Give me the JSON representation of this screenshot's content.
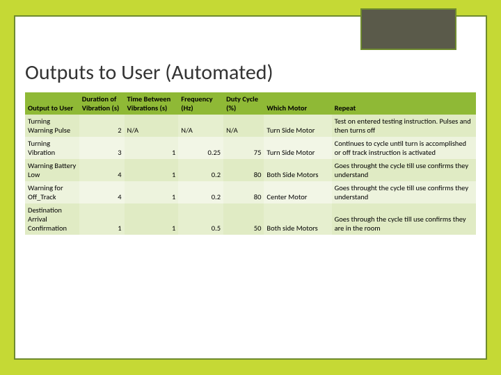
{
  "title": "Outputs to User (Automated)",
  "columns": [
    "Output to User",
    "Duration of Vibration (s)",
    "Time Between Vibrations (s)",
    "Frequency (Hz)",
    "Duty Cycle (%)",
    "Which Motor",
    "Repeat"
  ],
  "rows": [
    {
      "c0": "Turning Warning Pulse",
      "c1": "2",
      "c2": "N/A",
      "c3": "N/A",
      "c4": "N/A",
      "c5": "Turn Side Motor",
      "c6": "Test on entered testing instruction. Pulses and then turns off"
    },
    {
      "c0": "Turning Vibration",
      "c1": "3",
      "c2": "1",
      "c3": "0.25",
      "c4": "75",
      "c5": "Turn Side Motor",
      "c6": "Continues to cycle until turn is accomplished or off track instruction is activated"
    },
    {
      "c0": "Warning Battery Low",
      "c1": "4",
      "c2": "1",
      "c3": "0.2",
      "c4": "80",
      "c5": "Both Side Motors",
      "c6": "Goes throught the cycle till use confirms they understand"
    },
    {
      "c0": "Warning for Off_Track",
      "c1": "4",
      "c2": "1",
      "c3": "0.2",
      "c4": "80",
      "c5": "Center Motor",
      "c6": "Goes throught the cycle till use confirms they understand"
    },
    {
      "c0": "Destination Arrival Confirmation",
      "c1": "1",
      "c2": "1",
      "c3": "0.5",
      "c4": "50",
      "c5": "Both side Motors",
      "c6": "Goes through the cycle till use confirms they are in the room"
    }
  ],
  "colors": {
    "page_bg": "#c5d935",
    "frame_border": "#6f8a2f",
    "corner_box": "#5a5a4a",
    "header_bg": "#8fb936"
  }
}
